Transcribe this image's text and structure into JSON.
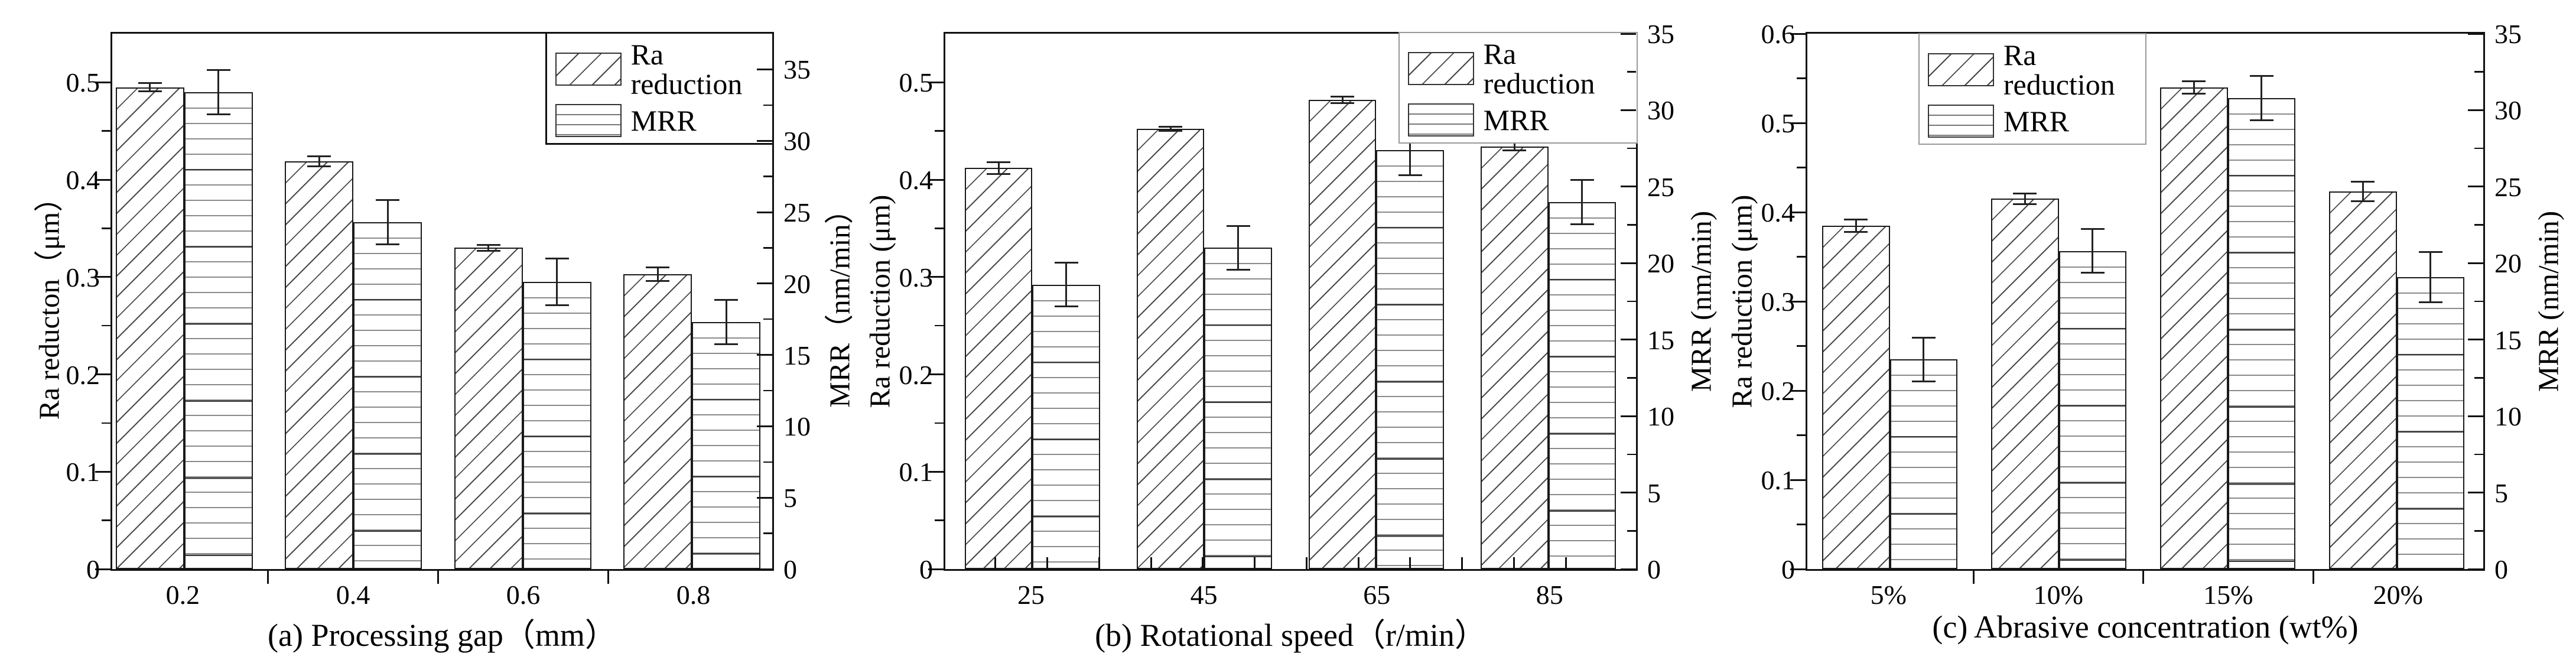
{
  "chart_data": [
    {
      "type": "bar",
      "caption": "(a)  Processing gap（mm）",
      "categories": [
        "0.2",
        "0.4",
        "0.6",
        "0.8"
      ],
      "left_axis": {
        "label": "Ra reducton（μm）",
        "ticks": [
          "0",
          "0.1",
          "0.2",
          "0.3",
          "0.4",
          "0.5"
        ],
        "max": 0.55,
        "minor_step": 0.05
      },
      "right_axis": {
        "label": "MRR（nm/min）",
        "ticks": [
          "0",
          "5",
          "10",
          "15",
          "20",
          "25",
          "30",
          "35"
        ],
        "max": 37.5,
        "minor_step": 2.5
      },
      "legend": {
        "position": "top-right",
        "items": [
          {
            "label": "Ra reduction",
            "pattern": "diagonal-hatch"
          },
          {
            "label": "MRR",
            "pattern": "horizontal-lines"
          }
        ]
      },
      "series": [
        {
          "name": "Ra reduction",
          "axis": "left",
          "pattern": "diagonal-hatch",
          "values": [
            0.495,
            0.419,
            0.33,
            0.303
          ],
          "errors": [
            0.005,
            0.006,
            0.004,
            0.008
          ]
        },
        {
          "name": "MRR",
          "axis": "right",
          "pattern": "horizontal-lines",
          "values": [
            33.4,
            24.3,
            20.1,
            17.3
          ],
          "errors": [
            1.6,
            1.6,
            1.7,
            1.6
          ]
        }
      ]
    },
    {
      "type": "bar",
      "caption": "(b)  Rotational speed（r/min）",
      "categories": [
        "25",
        "45",
        "65",
        "85"
      ],
      "left_axis": {
        "label": "Ra reduction (μm)",
        "ticks": [
          "0",
          "0.1",
          "0.2",
          "0.3",
          "0.4",
          "0.5"
        ],
        "max": 0.55,
        "minor_step": 0.05
      },
      "right_axis": {
        "label": "MRR (nm/min)",
        "ticks": [
          "0",
          "5",
          "10",
          "15",
          "20",
          "25",
          "30",
          "35"
        ],
        "max": 35,
        "minor_step": 2.5
      },
      "legend": {
        "position": "top-right",
        "items": [
          {
            "label": "Ra reduction",
            "pattern": "diagonal-hatch"
          },
          {
            "label": "MRR",
            "pattern": "horizontal-lines"
          }
        ]
      },
      "series": [
        {
          "name": "Ra reduction",
          "axis": "left",
          "pattern": "diagonal-hatch",
          "values": [
            0.412,
            0.452,
            0.482,
            0.434
          ],
          "errors": [
            0.007,
            0.003,
            0.004,
            0.005
          ]
        },
        {
          "name": "MRR",
          "axis": "right",
          "pattern": "horizontal-lines",
          "values": [
            18.6,
            21.0,
            27.4,
            24.0
          ],
          "errors": [
            1.5,
            1.5,
            1.7,
            1.5
          ]
        }
      ]
    },
    {
      "type": "bar",
      "caption": "(c)  Abrasive concentration (wt%)",
      "categories": [
        "5%",
        "10%",
        "15%",
        "20%"
      ],
      "left_axis": {
        "label": "Ra reduction (μm)",
        "ticks": [
          "0",
          "0.1",
          "0.2",
          "0.3",
          "0.4",
          "0.5",
          "0.6"
        ],
        "max": 0.6,
        "minor_step": 0.05
      },
      "right_axis": {
        "label": "MRR (nm/min)",
        "ticks": [
          "0",
          "5",
          "10",
          "15",
          "20",
          "25",
          "30",
          "35"
        ],
        "max": 35,
        "minor_step": 2.5
      },
      "legend": {
        "position": "top-left",
        "items": [
          {
            "label": "Ra reduction",
            "pattern": "diagonal-hatch"
          },
          {
            "label": "MRR",
            "pattern": "horizontal-lines"
          }
        ]
      },
      "series": [
        {
          "name": "Ra reduction",
          "axis": "left",
          "pattern": "diagonal-hatch",
          "values": [
            0.385,
            0.415,
            0.54,
            0.423
          ],
          "errors": [
            0.008,
            0.007,
            0.008,
            0.012
          ]
        },
        {
          "name": "MRR",
          "axis": "right",
          "pattern": "horizontal-lines",
          "values": [
            13.7,
            20.8,
            30.8,
            19.1
          ],
          "errors": [
            1.5,
            1.5,
            1.5,
            1.7
          ]
        }
      ]
    }
  ]
}
